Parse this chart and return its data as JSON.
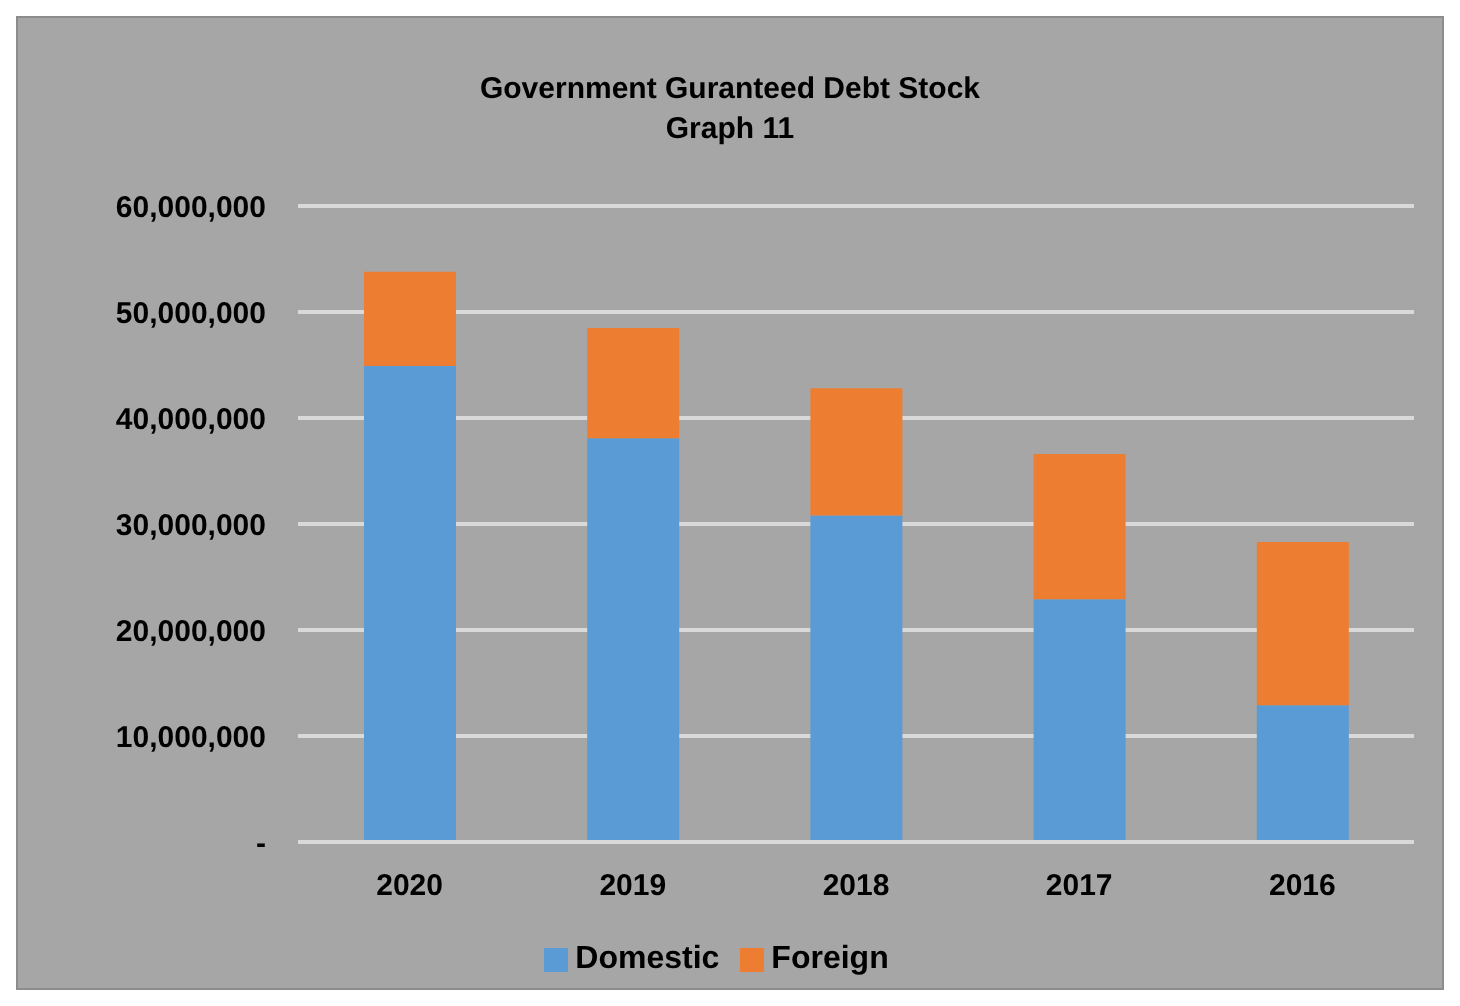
{
  "chart_data": {
    "type": "bar",
    "title": "Government Guranteed Debt Stock",
    "subtitle": "Graph 11",
    "categories": [
      "2020",
      "2019",
      "2018",
      "2017",
      "2016"
    ],
    "stacked": true,
    "series": [
      {
        "name": "Domestic",
        "color": "#5b9bd5",
        "values": [
          44900000,
          38100000,
          30800000,
          22900000,
          12900000
        ]
      },
      {
        "name": "Foreign",
        "color": "#ed7d31",
        "values": [
          8900000,
          10400000,
          12000000,
          13700000,
          15400000
        ]
      }
    ],
    "ylim": [
      0,
      60000000
    ],
    "yticks": [
      {
        "value": 0,
        "label": "-"
      },
      {
        "value": 10000000,
        "label": "10,000,000"
      },
      {
        "value": 20000000,
        "label": "20,000,000"
      },
      {
        "value": 30000000,
        "label": "30,000,000"
      },
      {
        "value": 40000000,
        "label": "40,000,000"
      },
      {
        "value": 50000000,
        "label": "50,000,000"
      },
      {
        "value": 60000000,
        "label": "60,000,000"
      }
    ],
    "grid": "y",
    "legend": "bottom"
  }
}
